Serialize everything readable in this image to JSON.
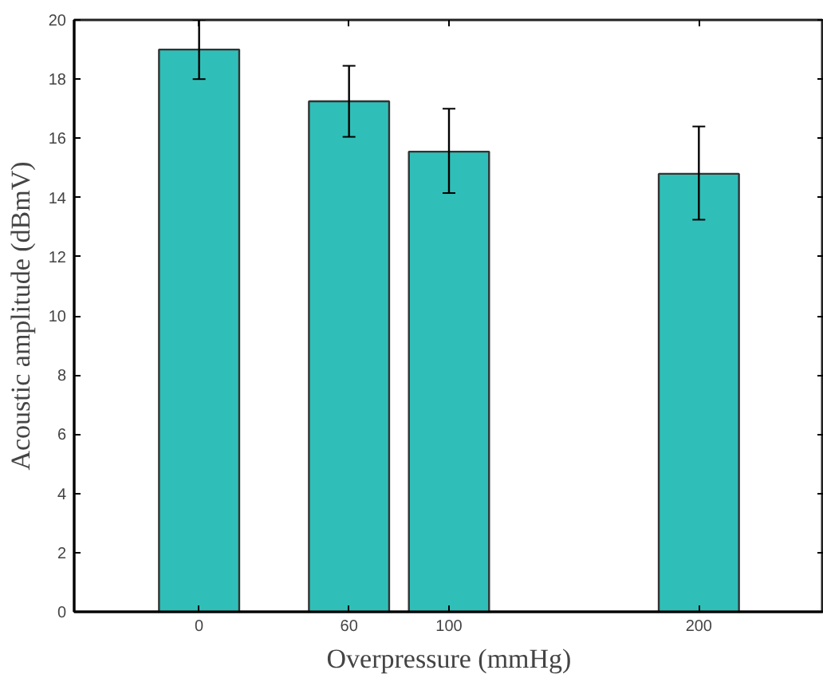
{
  "chart_data": {
    "type": "bar",
    "xlabel": "Overpressure (mmHg)",
    "ylabel": "Acoustic amplitude (dBmV)",
    "x": [
      0,
      60,
      100,
      200
    ],
    "values": [
      19,
      17.25,
      15.55,
      14.8
    ],
    "color": "#2fbfb8",
    "errors": [
      [
        18,
        20
      ],
      [
        16.05,
        18.45
      ],
      [
        14.15,
        17.0
      ],
      [
        13.25,
        16.4
      ]
    ],
    "xlim": [
      -50,
      250
    ],
    "xticks": [
      0,
      60,
      100,
      200
    ],
    "ylim": [
      0,
      20
    ],
    "yticks": [
      0,
      2,
      4,
      6,
      8,
      10,
      12,
      14,
      16,
      18,
      20
    ],
    "grid": false
  }
}
